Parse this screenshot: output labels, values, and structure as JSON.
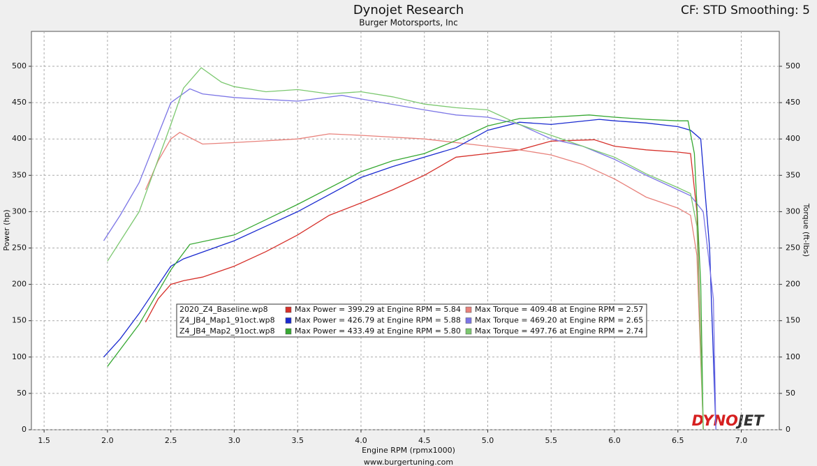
{
  "chart_data": {
    "type": "line",
    "title": "Dynojet Research",
    "subtitle": "Burger Motorsports, Inc",
    "settings_label": "CF: STD Smoothing: 5",
    "x_label": "Engine RPM (rpmx1000)",
    "y_label": "Power (hp)",
    "y2_label": "Torque (ft-lbs)",
    "footer": "www.burgertuning.com",
    "logo": {
      "first": "DYNO",
      "second": "JET"
    },
    "grid": true,
    "xlim": [
      1.4,
      7.3
    ],
    "xticks": [
      1.5,
      {
        "value": 2,
        "label": "2.0"
      },
      2.5,
      {
        "value": 3,
        "label": "3.0"
      },
      3.5,
      {
        "value": 4,
        "label": "4.0"
      },
      4.5,
      {
        "value": 5,
        "label": "5.0"
      },
      5.5,
      {
        "value": 6,
        "label": "6.0"
      },
      6.5,
      {
        "value": 7,
        "label": "7.0"
      }
    ],
    "ylim": [
      0,
      548
    ],
    "yticks": [
      0,
      50,
      100,
      150,
      200,
      250,
      300,
      350,
      400,
      450,
      500
    ],
    "y2lim": [
      0,
      548
    ],
    "y2ticks": [
      0,
      50,
      100,
      150,
      200,
      250,
      300,
      350,
      400,
      450,
      500
    ],
    "runs": [
      "2020_Z4_Baseline.wp8",
      "Z4_JB4_Map1_91oct.wp8",
      "Z4_JB4_Map2_91oct.wp8"
    ],
    "series": [
      {
        "name": "Max Power = 399.29 at Engine RPM = 5.84",
        "run": 0,
        "color": "#d6302a",
        "axis": "y",
        "x": [
          2.3,
          2.4,
          2.5,
          2.6,
          2.75,
          3.0,
          3.25,
          3.5,
          3.75,
          4.0,
          4.25,
          4.5,
          4.75,
          5.0,
          5.25,
          5.5,
          5.84,
          6.0,
          6.25,
          6.5,
          6.6,
          6.65,
          6.7
        ],
        "values": [
          148,
          180,
          200,
          205,
          210,
          225,
          245,
          268,
          295,
          312,
          330,
          350,
          375,
          380,
          385,
          397,
          399,
          390,
          385,
          382,
          380,
          300,
          0
        ]
      },
      {
        "name": "Max Torque = 409.48 at Engine RPM = 2.57",
        "run": 0,
        "color": "#e8827c",
        "axis": "y2",
        "x": [
          2.3,
          2.4,
          2.5,
          2.57,
          2.75,
          3.0,
          3.5,
          3.75,
          4.0,
          4.5,
          5.0,
          5.25,
          5.5,
          5.75,
          6.0,
          6.25,
          6.5,
          6.6,
          6.65,
          6.7
        ],
        "values": [
          330,
          370,
          400,
          409,
          393,
          395,
          400,
          407,
          405,
          400,
          390,
          385,
          378,
          365,
          345,
          320,
          305,
          295,
          240,
          0
        ]
      },
      {
        "name": "Max Power = 426.79 at Engine RPM = 5.88",
        "run": 1,
        "color": "#1a2ad0",
        "axis": "y",
        "x": [
          1.97,
          2.1,
          2.25,
          2.5,
          2.6,
          3.0,
          3.5,
          4.0,
          4.25,
          4.5,
          4.75,
          5.0,
          5.25,
          5.5,
          5.88,
          6.0,
          6.25,
          6.5,
          6.6,
          6.68,
          6.75,
          6.8
        ],
        "values": [
          100,
          125,
          160,
          225,
          235,
          260,
          300,
          347,
          362,
          375,
          388,
          412,
          423,
          420,
          427,
          425,
          422,
          417,
          412,
          400,
          250,
          0
        ]
      },
      {
        "name": "Max Torque = 469.20 at Engine RPM = 2.65",
        "run": 1,
        "color": "#7c76e6",
        "axis": "y2",
        "x": [
          1.97,
          2.1,
          2.25,
          2.5,
          2.65,
          2.75,
          3.0,
          3.5,
          3.85,
          4.0,
          4.5,
          4.75,
          5.0,
          5.25,
          5.5,
          5.75,
          6.0,
          6.25,
          6.5,
          6.6,
          6.7,
          6.78,
          6.8
        ],
        "values": [
          260,
          295,
          340,
          450,
          469,
          462,
          457,
          452,
          460,
          455,
          440,
          433,
          430,
          420,
          400,
          390,
          372,
          350,
          330,
          322,
          300,
          180,
          0
        ]
      },
      {
        "name": "Max Power = 433.49 at Engine RPM = 5.80",
        "run": 2,
        "color": "#36a832",
        "axis": "y",
        "x": [
          2.0,
          2.25,
          2.5,
          2.65,
          3.0,
          3.5,
          4.0,
          4.25,
          4.5,
          4.75,
          5.0,
          5.25,
          5.5,
          5.8,
          6.0,
          6.25,
          6.5,
          6.58,
          6.63,
          6.68,
          6.7
        ],
        "values": [
          87,
          145,
          220,
          255,
          268,
          310,
          355,
          370,
          380,
          398,
          418,
          428,
          430,
          433,
          430,
          427,
          425,
          425,
          380,
          200,
          0
        ]
      },
      {
        "name": "Max Torque = 497.76 at Engine RPM = 2.74",
        "run": 2,
        "color": "#7cc870",
        "axis": "y2",
        "x": [
          2.0,
          2.25,
          2.5,
          2.6,
          2.74,
          2.9,
          3.0,
          3.25,
          3.5,
          3.75,
          4.0,
          4.25,
          4.5,
          4.75,
          5.0,
          5.25,
          5.5,
          5.75,
          6.0,
          6.25,
          6.5,
          6.6,
          6.65,
          6.7
        ],
        "values": [
          232,
          300,
          420,
          470,
          498,
          478,
          472,
          465,
          468,
          462,
          465,
          458,
          448,
          443,
          440,
          420,
          405,
          390,
          375,
          352,
          333,
          325,
          280,
          0
        ]
      }
    ]
  }
}
